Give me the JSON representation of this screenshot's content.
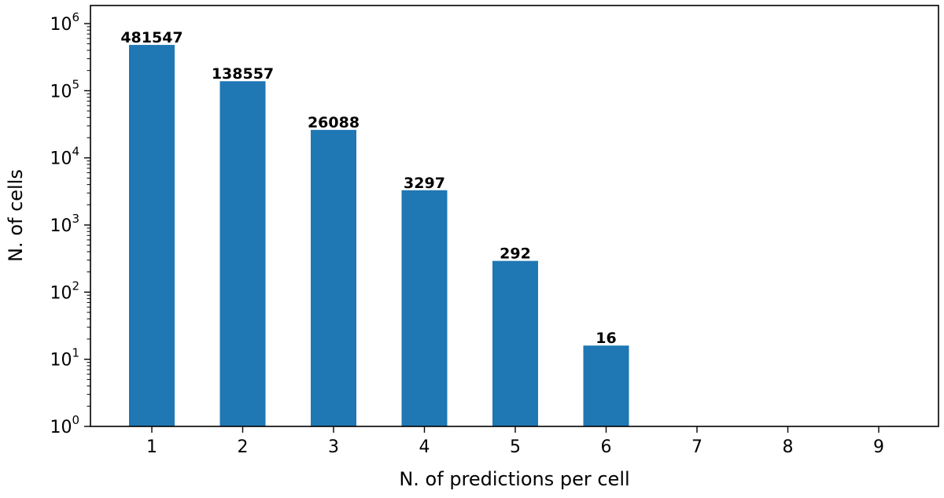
{
  "chart_data": {
    "type": "bar",
    "title": "",
    "xlabel": "N. of predictions per cell",
    "ylabel": "N. of cells",
    "y_scale": "log",
    "ylim": [
      1,
      1000000
    ],
    "categories": [
      "1",
      "2",
      "3",
      "4",
      "5",
      "6",
      "7",
      "8",
      "9"
    ],
    "values": [
      481547,
      138557,
      26088,
      3297,
      292,
      16,
      0,
      0,
      0
    ],
    "data_labels": [
      "481547",
      "138557",
      "26088",
      "3297",
      "292",
      "16",
      "",
      "",
      ""
    ],
    "y_ticks": [
      {
        "base": "10",
        "exp": "0"
      },
      {
        "base": "10",
        "exp": "1"
      },
      {
        "base": "10",
        "exp": "2"
      },
      {
        "base": "10",
        "exp": "3"
      },
      {
        "base": "10",
        "exp": "4"
      },
      {
        "base": "10",
        "exp": "5"
      },
      {
        "base": "10",
        "exp": "6"
      }
    ],
    "bar_color": "#1f77b4",
    "grid": false,
    "legend": "none"
  }
}
